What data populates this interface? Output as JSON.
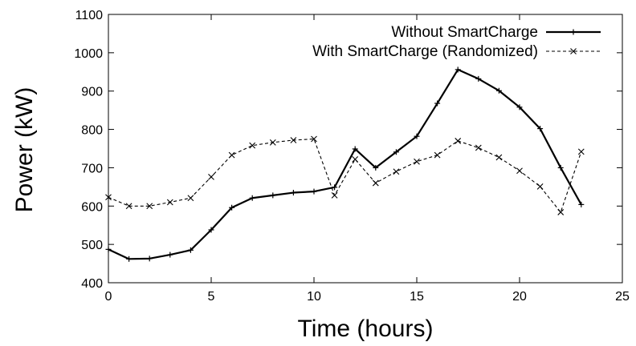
{
  "chart_data": {
    "type": "line",
    "title": "",
    "xlabel": "Time (hours)",
    "ylabel": "Power (kW)",
    "xlim": [
      0,
      25
    ],
    "ylim": [
      400,
      1100
    ],
    "xticks": [
      0,
      5,
      10,
      15,
      20,
      25
    ],
    "yticks": [
      400,
      500,
      600,
      700,
      800,
      900,
      1000,
      1100
    ],
    "xtick_labels": [
      "0",
      "5",
      "10",
      "15",
      "20",
      "25"
    ],
    "ytick_labels": [
      "400",
      "500",
      "600",
      "700",
      "800",
      "900",
      "1000",
      "1100"
    ],
    "grid": false,
    "legend_position": "top-right",
    "x": [
      0,
      1,
      2,
      3,
      4,
      5,
      6,
      7,
      8,
      9,
      10,
      11,
      12,
      13,
      14,
      15,
      16,
      17,
      18,
      19,
      20,
      21,
      22,
      23
    ],
    "series": [
      {
        "name": "Without SmartCharge",
        "style": "solid",
        "marker": "plus",
        "color": "#000000",
        "values": [
          487,
          462,
          463,
          473,
          485,
          538,
          596,
          621,
          628,
          635,
          638,
          649,
          749,
          700,
          741,
          782,
          868,
          956,
          932,
          901,
          858,
          802,
          700,
          604
        ]
      },
      {
        "name": "With SmartCharge (Randomized)",
        "style": "dashed",
        "marker": "x",
        "color": "#000000",
        "values": [
          623,
          600,
          600,
          610,
          621,
          676,
          733,
          758,
          766,
          772,
          775,
          628,
          722,
          660,
          690,
          716,
          733,
          770,
          752,
          727,
          692,
          651,
          584,
          742
        ]
      }
    ]
  }
}
